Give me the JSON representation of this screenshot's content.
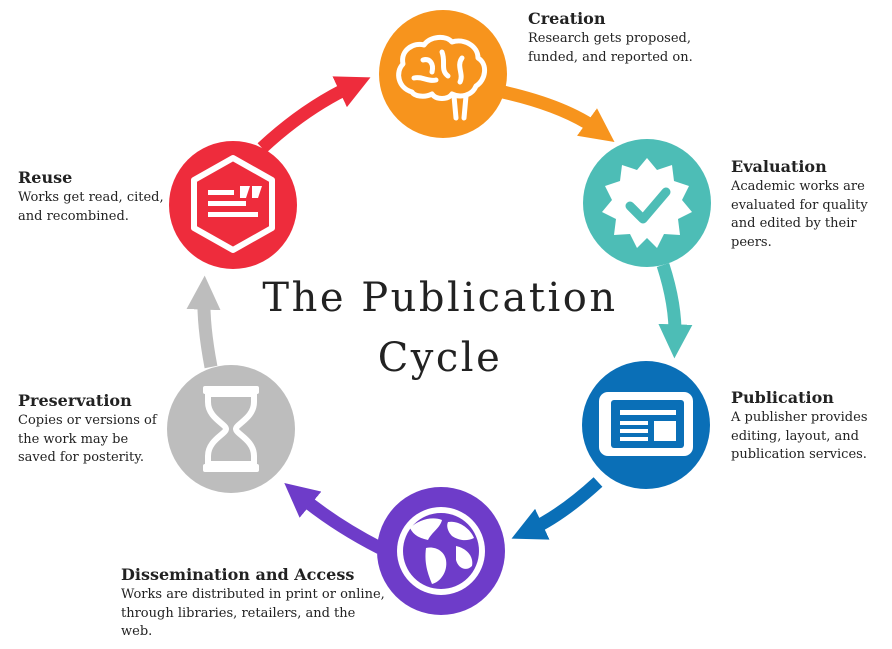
{
  "title": {
    "line1": "The Publication",
    "line2": "Cycle"
  },
  "stages": [
    {
      "id": "creation",
      "heading": "Creation",
      "description": "Research gets proposed, funded, and reported on.",
      "color": "#F7941D",
      "icon": "brain-icon"
    },
    {
      "id": "evaluation",
      "heading": "Evaluation",
      "description": "Academic works are evaluated for quality and edited by their peers.",
      "color": "#4DBDB6",
      "icon": "checkmark-badge-icon"
    },
    {
      "id": "publication",
      "heading": "Publication",
      "description": "A publisher provides editing, layout, and publication services.",
      "color": "#0A6FB7",
      "icon": "document-icon"
    },
    {
      "id": "dissemination",
      "heading": "Dissemination and Access",
      "description": "Works are distributed in print or online, through libraries, retailers, and the web.",
      "color": "#6E3CC9",
      "icon": "globe-icon"
    },
    {
      "id": "preservation",
      "heading": "Preservation",
      "description": "Copies or versions of the work may be saved for posterity.",
      "color": "#BDBDBD",
      "icon": "hourglass-icon"
    },
    {
      "id": "reuse",
      "heading": "Reuse",
      "description": "Works get read, cited, and recombined.",
      "color": "#EE2C3C",
      "icon": "quote-document-icon"
    }
  ]
}
